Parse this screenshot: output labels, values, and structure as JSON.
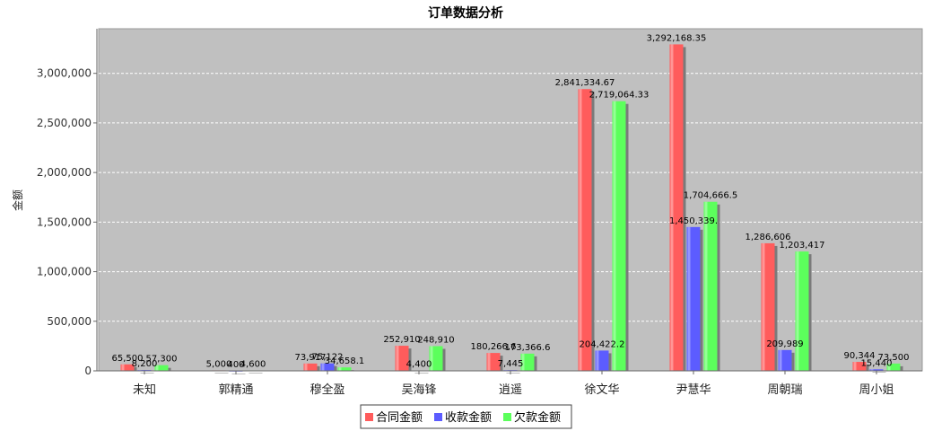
{
  "chart_data": {
    "type": "bar",
    "title": "订单数据分析",
    "xlabel": "",
    "ylabel": "金额",
    "ylim": [
      0,
      3450000
    ],
    "yticks": [
      0,
      500000,
      1000000,
      1500000,
      2000000,
      2500000,
      3000000
    ],
    "ytick_labels": [
      "0",
      "500,000",
      "1,000,000",
      "1,500,000",
      "2,000,000",
      "2,500,000",
      "3,000,000"
    ],
    "grid": true,
    "legend_position": "bottom-center",
    "categories": [
      "未知",
      "郭精通",
      "穆全盈",
      "吴海锋",
      "逍遥",
      "徐文华",
      "尹慧华",
      "周朝瑞",
      "周小姐"
    ],
    "series": [
      {
        "name": "合同金额",
        "color": "#ff5c5c",
        "values": [
          65500,
          5000,
          73917,
          252910,
          180266.6,
          2841334.67,
          3292168.35,
          1286606,
          90344
        ],
        "labels": [
          "65,500",
          "5,000",
          "73,917",
          "252,910",
          "180,266.6",
          "2,841,334.67",
          "3,292,168.35",
          "1,286,606",
          "90,344"
        ]
      },
      {
        "name": "收款金额",
        "color": "#5c5cff",
        "values": [
          8200,
          400,
          75122,
          4400,
          7445,
          204422.2,
          1450339,
          209989,
          15440
        ],
        "labels": [
          "8,200",
          "400",
          "75,122",
          "4,400",
          "7,445",
          "204,422.2",
          "1,450,339.",
          "209,989",
          "15,440"
        ]
      },
      {
        "name": "欠款金额",
        "color": "#5cff5c",
        "values": [
          57300,
          4600,
          34658.1,
          248910,
          173366.6,
          2719064.33,
          1704666.5,
          1203417,
          73500
        ],
        "labels": [
          "57,300",
          "4,600",
          "34,658.1",
          "248,910",
          "173,366.6",
          "2,719,064.33",
          "1,704,666.5",
          "1,203,417",
          "73,500"
        ]
      }
    ]
  }
}
